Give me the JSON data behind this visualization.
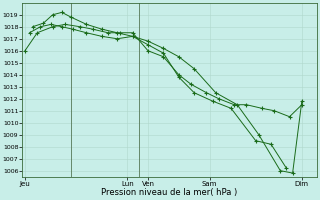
{
  "background_color": "#c8eee8",
  "grid_color": "#b0d8cc",
  "line_color": "#1a6b1a",
  "title": "Pression niveau de la mer( hPa )",
  "ylim": [
    1005.5,
    1020.0
  ],
  "yticks": [
    1006,
    1007,
    1008,
    1009,
    1010,
    1011,
    1012,
    1013,
    1014,
    1015,
    1016,
    1017,
    1018,
    1019
  ],
  "xtick_labels": [
    "Jeu",
    "Lun",
    "Ven",
    "Sam",
    "Dim"
  ],
  "xtick_positions": [
    0.0,
    3.33,
    4.0,
    6.0,
    9.0
  ],
  "xlim": [
    -0.1,
    9.5
  ],
  "vline_positions": [
    1.5,
    3.7
  ],
  "vline_color": "#557755",
  "series1_x": [
    0.0,
    0.4,
    0.9,
    1.3,
    1.8,
    2.2,
    2.7,
    3.1,
    3.5,
    4.0,
    4.5,
    5.0,
    5.4,
    5.9,
    6.3,
    6.8,
    7.2,
    7.7,
    8.1,
    8.6,
    9.0
  ],
  "series1_y": [
    1016.0,
    1017.5,
    1018.0,
    1018.2,
    1018.0,
    1017.8,
    1017.5,
    1017.5,
    1017.5,
    1016.0,
    1015.5,
    1014.0,
    1013.2,
    1012.5,
    1012.0,
    1011.5,
    1011.5,
    1011.2,
    1011.0,
    1010.5,
    1011.5
  ],
  "series2_x": [
    0.25,
    0.6,
    0.9,
    1.2,
    1.5,
    2.0,
    2.5,
    3.0,
    3.5,
    4.0,
    4.5,
    5.0,
    5.5,
    6.2,
    6.9,
    7.6,
    8.3,
    8.7,
    9.0
  ],
  "series2_y": [
    1018.0,
    1018.3,
    1019.0,
    1019.2,
    1018.8,
    1018.2,
    1017.8,
    1017.5,
    1017.2,
    1016.8,
    1016.2,
    1015.5,
    1014.5,
    1012.5,
    1011.5,
    1009.0,
    1006.0,
    1005.8,
    1011.8
  ],
  "series3_x": [
    0.15,
    0.5,
    0.85,
    1.2,
    1.55,
    2.0,
    2.5,
    3.0,
    3.5,
    4.0,
    4.5,
    5.0,
    5.5,
    6.1,
    6.7,
    7.5,
    8.0,
    8.5
  ],
  "series3_y": [
    1017.5,
    1018.0,
    1018.2,
    1018.0,
    1017.8,
    1017.5,
    1017.2,
    1017.0,
    1017.2,
    1016.5,
    1015.8,
    1013.8,
    1012.5,
    1011.8,
    1011.2,
    1008.5,
    1008.2,
    1006.2
  ]
}
